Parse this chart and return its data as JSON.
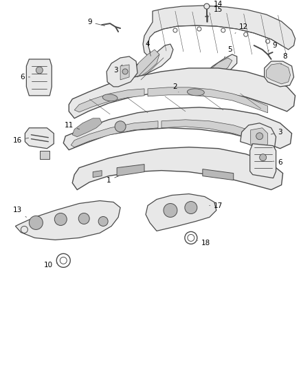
{
  "bg_color": "#ffffff",
  "line_color": "#4a4a4a",
  "label_color": "#000000",
  "figsize": [
    4.38,
    5.33
  ],
  "dpi": 100,
  "light_fill": "#e8e8e8",
  "mid_fill": "#d0d0d0",
  "dark_fill": "#b8b8b8"
}
